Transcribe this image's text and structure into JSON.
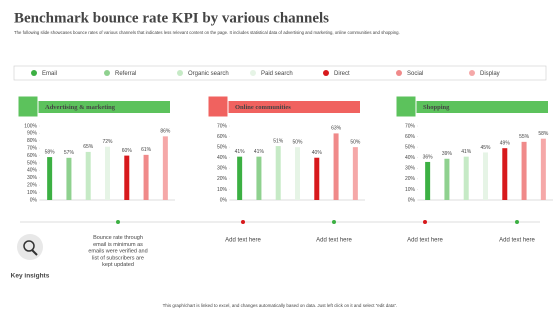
{
  "header": {
    "title": "Benchmark bounce rate KPI by various channels",
    "subtitle": "The following slide showcases bounce rates of various channels that indicates less relevant content on the page. It includes statistical data of advertising and marketing, online communities and shopping."
  },
  "legend": {
    "names": [
      "Email",
      "Referral",
      "Organic search",
      "Paid search",
      "Direct",
      "Social",
      "Display"
    ],
    "colors": [
      "#3cb043",
      "#8fd18f",
      "#c6eac6",
      "#e6f4e6",
      "#d7191c",
      "#f08a8a",
      "#f5a8a8"
    ]
  },
  "chart_data": [
    {
      "type": "bar",
      "title": "Advertising & marketing",
      "title_color": "#5cc25c",
      "values": [
        58,
        57,
        65,
        72,
        60,
        61,
        86
      ],
      "value_labels": [
        "58%",
        "57%",
        "65%",
        "72%",
        "60%",
        "61%",
        "86%"
      ],
      "ylim": [
        0,
        100
      ],
      "yticks": [
        {
          "value": 0,
          "label": "0%"
        },
        {
          "value": 10,
          "label": "10%"
        },
        {
          "value": 20,
          "label": "20%"
        },
        {
          "value": 30,
          "label": "30%"
        },
        {
          "value": 40,
          "label": "40%"
        },
        {
          "value": 50,
          "label": "50%"
        },
        {
          "value": 60,
          "label": "60%"
        },
        {
          "value": 70,
          "label": "70%"
        },
        {
          "value": 80,
          "label": "80%"
        },
        {
          "value": 90,
          "label": "90%"
        },
        {
          "value": 100,
          "label": "100%"
        }
      ]
    },
    {
      "type": "bar",
      "title": "Online communities",
      "title_color": "#f0625f",
      "values": [
        41,
        41,
        51,
        50,
        40,
        63,
        50
      ],
      "value_labels": [
        "41%",
        "41%",
        "51%",
        "50%",
        "40%",
        "63%",
        "50%"
      ],
      "ylim": [
        0,
        70
      ],
      "yticks": [
        {
          "value": 0,
          "label": "0%"
        },
        {
          "value": 10,
          "label": "10%"
        },
        {
          "value": 20,
          "label": "20%"
        },
        {
          "value": 30,
          "label": "30%"
        },
        {
          "value": 40,
          "label": "40%"
        },
        {
          "value": 50,
          "label": "50%"
        },
        {
          "value": 60,
          "label": "60%"
        },
        {
          "value": 70,
          "label": "70%"
        }
      ]
    },
    {
      "type": "bar",
      "title": "Shopping",
      "title_color": "#5cc25c",
      "values": [
        36,
        39,
        41,
        45,
        49,
        55,
        58
      ],
      "value_labels": [
        "36%",
        "39%",
        "41%",
        "45%",
        "49%",
        "55%",
        "58%"
      ],
      "ylim": [
        0,
        70
      ],
      "yticks": [
        {
          "value": 0,
          "label": "0%"
        },
        {
          "value": 10,
          "label": "10%"
        },
        {
          "value": 20,
          "label": "20%"
        },
        {
          "value": 30,
          "label": "30%"
        },
        {
          "value": 40,
          "label": "40%"
        },
        {
          "value": 50,
          "label": "50%"
        },
        {
          "value": 60,
          "label": "60%"
        },
        {
          "value": 70,
          "label": "70%"
        }
      ]
    }
  ],
  "insights": {
    "label": "Key insights",
    "notes": [
      "Bounce rate through email is minimum as emails were verified and list of subscribers are kept updated",
      "Add text here",
      "Add text here",
      "Add text here",
      "Add text here"
    ]
  },
  "footer": "This graph/chart is linked to excel, and changes automatically based on data. Just left click on it and select \"edit data\"."
}
